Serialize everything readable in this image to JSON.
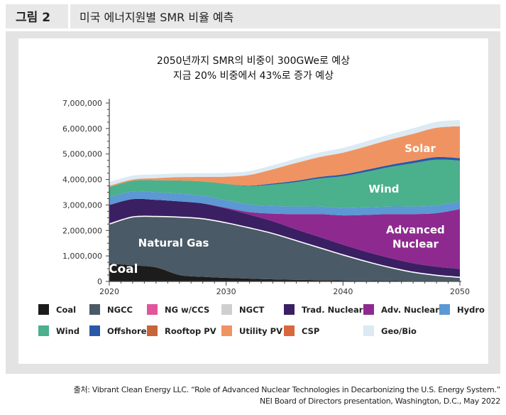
{
  "figure": {
    "number": "그림 2",
    "title": "미국 에너지원별 SMR 비율 예측"
  },
  "source": {
    "line1": "출처: Vibrant Clean Energy LLC. “Role of Advanced Nuclear Technologies in Decarbonizing the U.S. Energy System.”",
    "line2": "NEI Board of Directors presentation, Washington, D.C., May 2022"
  },
  "chart_data": {
    "type": "area",
    "stacked": true,
    "title": "2050년까지 SMR의 비중이 300GWe로 예상",
    "subtitle": "지금 20% 비중에서 43%로 증가 예상",
    "xlabel": "",
    "ylabel": "",
    "x": [
      2020,
      2022,
      2024,
      2026,
      2028,
      2030,
      2032,
      2034,
      2036,
      2038,
      2040,
      2042,
      2044,
      2046,
      2048,
      2050
    ],
    "xticks": [
      2020,
      2030,
      2040,
      2050
    ],
    "ylim": [
      0,
      7000000
    ],
    "yticks": [
      {
        "value": 0,
        "label": "0"
      },
      {
        "value": 1000000,
        "label": "1,000,000"
      },
      {
        "value": 2000000,
        "label": "2,000,000"
      },
      {
        "value": 3000000,
        "label": "3,000,000"
      },
      {
        "value": 4000000,
        "label": "4,000,000"
      },
      {
        "value": 5000000,
        "label": "5,000,000"
      },
      {
        "value": 6000000,
        "label": "6,000,000"
      },
      {
        "value": 7000000,
        "label": "7,000,000"
      }
    ],
    "legend_position": "bottom",
    "series": [
      {
        "name": "Coal",
        "color": "#1c1c1c",
        "values": [
          700000,
          630000,
          550000,
          250000,
          180000,
          140000,
          110000,
          80000,
          60000,
          50000,
          40000,
          30000,
          30000,
          20000,
          20000,
          20000
        ]
      },
      {
        "name": "NGCC",
        "color": "#4a5a66",
        "values": [
          1550000,
          1900000,
          2000000,
          2270000,
          2280000,
          2160000,
          1990000,
          1800000,
          1540000,
          1270000,
          1000000,
          750000,
          520000,
          340000,
          220000,
          140000
        ]
      },
      {
        "name": "NG w/CCS",
        "color": "#e0569a",
        "values": [
          0,
          0,
          0,
          0,
          0,
          0,
          0,
          0,
          0,
          0,
          0,
          0,
          0,
          0,
          0,
          0
        ]
      },
      {
        "name": "NGCT",
        "color": "#cfcfcf",
        "values": [
          0,
          0,
          0,
          0,
          0,
          0,
          0,
          0,
          0,
          0,
          0,
          0,
          0,
          0,
          0,
          0
        ]
      },
      {
        "name": "Trad. Nuclear",
        "color": "#3b1f63",
        "values": [
          750000,
          700000,
          650000,
          620000,
          600000,
          560000,
          520000,
          480000,
          440000,
          420000,
          400000,
          380000,
          370000,
          350000,
          340000,
          330000
        ]
      },
      {
        "name": "Adv. Nuclear",
        "color": "#8e2a8f",
        "values": [
          0,
          0,
          0,
          0,
          0,
          30000,
          100000,
          300000,
          600000,
          900000,
          1150000,
          1450000,
          1720000,
          1930000,
          2100000,
          2350000
        ]
      },
      {
        "name": "Hydro",
        "color": "#5b98d4",
        "values": [
          300000,
          300000,
          300000,
          300000,
          300000,
          300000,
          300000,
          300000,
          300000,
          300000,
          300000,
          300000,
          300000,
          300000,
          300000,
          300000
        ]
      },
      {
        "name": "Wind",
        "color": "#4bb08c",
        "values": [
          400000,
          420000,
          470000,
          520000,
          560000,
          640000,
          720000,
          840000,
          960000,
          1100000,
          1240000,
          1390000,
          1550000,
          1700000,
          1800000,
          1600000
        ]
      },
      {
        "name": "Offshore",
        "color": "#2a58a8",
        "values": [
          0,
          0,
          0,
          0,
          0,
          0,
          20000,
          40000,
          50000,
          60000,
          70000,
          80000,
          80000,
          90000,
          100000,
          100000
        ]
      },
      {
        "name": "Rooftop PV",
        "color": "#c8643a",
        "values": [
          0,
          0,
          0,
          0,
          0,
          0,
          0,
          0,
          0,
          0,
          0,
          0,
          0,
          0,
          0,
          0
        ]
      },
      {
        "name": "Utility PV",
        "color": "#ef9362",
        "values": [
          50000,
          50000,
          80000,
          130000,
          180000,
          280000,
          420000,
          560000,
          700000,
          780000,
          850000,
          920000,
          990000,
          1060000,
          1150000,
          1250000
        ]
      },
      {
        "name": "CSP",
        "color": "#d8683c",
        "values": [
          0,
          0,
          0,
          0,
          0,
          0,
          0,
          0,
          0,
          0,
          0,
          0,
          0,
          0,
          0,
          0
        ]
      },
      {
        "name": "Geo/Bio",
        "color": "#dbeaf3",
        "values": [
          150000,
          150000,
          150000,
          150000,
          150000,
          150000,
          150000,
          160000,
          170000,
          180000,
          190000,
          200000,
          210000,
          220000,
          230000,
          240000
        ]
      }
    ],
    "area_labels": [
      {
        "text": "Coal",
        "series": "Coal",
        "x": 2021.2,
        "y": 330000,
        "size": "large"
      },
      {
        "text": "Natural Gas",
        "series": "NGCC",
        "x": 2025.5,
        "y": 1370000,
        "size": "medium"
      },
      {
        "text": "Advanced",
        "series": "Adv. Nuclear",
        "x": 2046.2,
        "y": 1880000,
        "size": "medium"
      },
      {
        "text": "Nuclear",
        "series": "Adv. Nuclear",
        "x": 2046.2,
        "y": 1320000,
        "size": "medium"
      },
      {
        "text": "Wind",
        "series": "Wind",
        "x": 2043.5,
        "y": 3480000,
        "size": "medium"
      },
      {
        "text": "Solar",
        "series": "Utility PV",
        "x": 2046.6,
        "y": 5070000,
        "size": "medium"
      }
    ]
  }
}
